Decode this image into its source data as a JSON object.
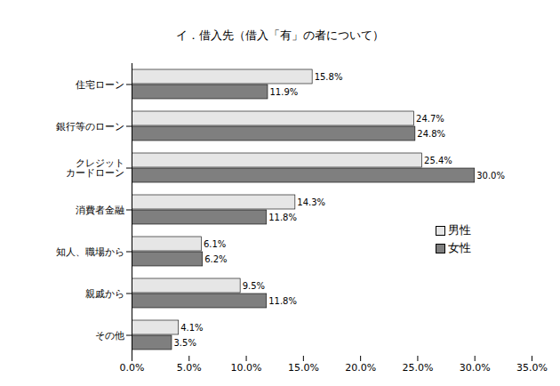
{
  "chart_data": {
    "type": "bar",
    "orientation": "horizontal",
    "title": "イ．借入先（借入「有」の者について）",
    "categories": [
      "住宅ローン",
      "銀行等のローン",
      "クレジット\nカードローン",
      "消費者金融",
      "知人、職場から",
      "親戚から",
      "その他"
    ],
    "series": [
      {
        "name": "男性",
        "color": "#e6e6e6",
        "values": [
          15.8,
          24.7,
          25.4,
          14.3,
          6.1,
          9.5,
          4.1
        ],
        "value_labels": [
          "15.8%",
          "24.7%",
          "25.4%",
          "14.3%",
          "6.1%",
          "9.5%",
          "4.1%"
        ]
      },
      {
        "name": "女性",
        "color": "#7f7f7f",
        "values": [
          11.9,
          24.8,
          30.0,
          11.8,
          6.2,
          11.8,
          3.5
        ],
        "value_labels": [
          "11.9%",
          "24.8%",
          "30.0%",
          "11.8%",
          "6.2%",
          "11.8%",
          "3.5%"
        ]
      }
    ],
    "xlim": [
      0,
      35
    ],
    "xticks": [
      {
        "value": 0,
        "label": "0.0%"
      },
      {
        "value": 5,
        "label": "5.0%"
      },
      {
        "value": 10,
        "label": "10.0%"
      },
      {
        "value": 15,
        "label": "15.0%"
      },
      {
        "value": 20,
        "label": "20.0%"
      },
      {
        "value": 25,
        "label": "25.0%"
      },
      {
        "value": 30,
        "label": "30.0%"
      },
      {
        "value": 35,
        "label": "35.0%"
      }
    ],
    "grid": false,
    "data_labels": true,
    "legend": "right"
  }
}
